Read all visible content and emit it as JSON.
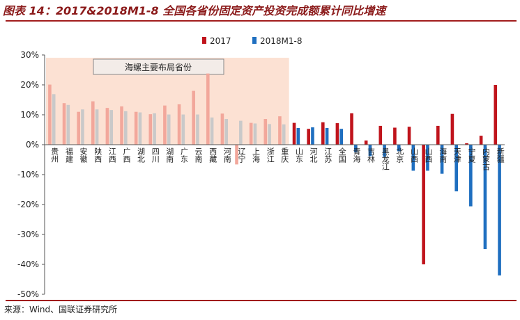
{
  "title": "图表 14：2017&2018M1-8 全国各省份固定资产投资完成额累计同比增速",
  "source": "来源：Wind、国联证券研究所",
  "chart_data": {
    "type": "bar",
    "categories": [
      "贵州",
      "福建",
      "安徽",
      "陕西",
      "江西",
      "广西",
      "湖北",
      "四川",
      "湖南",
      "广东",
      "云南",
      "西藏",
      "河南",
      "辽宁",
      "上海",
      "浙江",
      "重庆",
      "山东",
      "河北",
      "江苏",
      "全国",
      "青海",
      "吉林",
      "黑龙江",
      "北京",
      "山西",
      "山西",
      "海南",
      "天津",
      "宁夏",
      "内蒙古",
      "新疆"
    ],
    "series": [
      {
        "name": "2017",
        "color": "#c0141c",
        "values": [
          20.1,
          13.9,
          11.0,
          14.5,
          12.3,
          12.8,
          11.0,
          10.2,
          13.1,
          13.5,
          18.0,
          23.8,
          10.4,
          -6.6,
          7.3,
          8.6,
          9.5,
          7.3,
          5.3,
          7.5,
          7.2,
          10.5,
          1.4,
          6.3,
          5.7,
          6.0,
          -40.0,
          6.3,
          10.3,
          0.5,
          3.0,
          20.0
        ]
      },
      {
        "name": "2018M1-8",
        "color": "#1f6fc0",
        "values": [
          16.9,
          13.3,
          11.8,
          11.8,
          11.6,
          11.2,
          10.8,
          10.5,
          10.1,
          10.1,
          10.1,
          9.1,
          8.6,
          8.0,
          7.1,
          6.9,
          6.8,
          5.6,
          5.8,
          5.6,
          5.3,
          -2.5,
          -3.8,
          -4.1,
          -2.2,
          -8.7,
          -8.7,
          -9.7,
          -15.6,
          -20.6,
          -34.9,
          -43.7
        ]
      }
    ],
    "ylim": [
      -50,
      30
    ],
    "yticks": [
      30,
      20,
      10,
      0,
      -10,
      -20,
      -30,
      -40,
      -50
    ],
    "ytick_labels": [
      "30%",
      "20%",
      "10%",
      "0%",
      "-10%",
      "-20%",
      "-30%",
      "-40%",
      "-50%"
    ],
    "highlight_count": 17,
    "highlight_label": "海螺主要布局省份",
    "legend_position": "top-center",
    "grid": false
  }
}
